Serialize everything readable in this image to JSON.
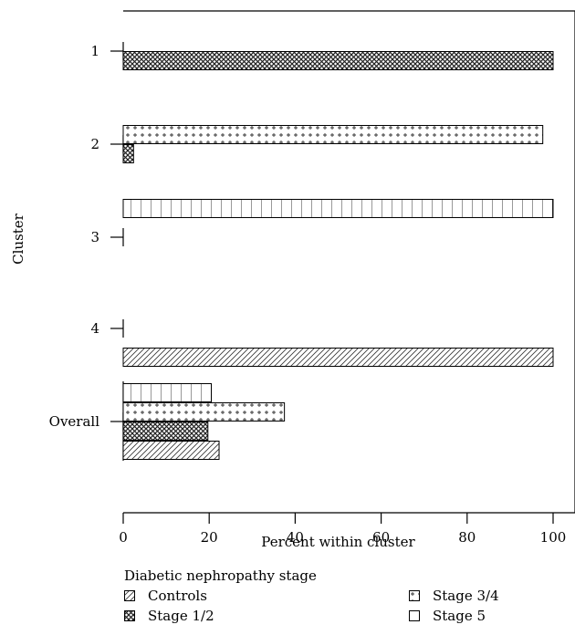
{
  "chart_data": {
    "type": "bar",
    "orientation": "horizontal",
    "ylabel": "Cluster",
    "xlabel": "Percent within cluster",
    "xlim": [
      0,
      100
    ],
    "x_ticks": [
      "0",
      "20",
      "40",
      "60",
      "80",
      "100"
    ],
    "categories": [
      "1",
      "2",
      "3",
      "4",
      "Overall"
    ],
    "series": [
      {
        "name": "Controls",
        "pattern": "diagonal-lines",
        "values": [
          0,
          0,
          0,
          100,
          22.3
        ]
      },
      {
        "name": "Stage 1/2",
        "pattern": "crosshatch",
        "values": [
          100,
          2.4,
          0,
          0,
          19.7
        ]
      },
      {
        "name": "Stage 3/4",
        "pattern": "plus-dots",
        "values": [
          0,
          97.6,
          0,
          0,
          37.5
        ]
      },
      {
        "name": "Stage 5",
        "pattern": "grid-blocks",
        "values": [
          0,
          0,
          100,
          0,
          20.5
        ]
      }
    ],
    "grid": false,
    "legend_title": "Diabetic nephropathy stage",
    "legend_position": "bottom"
  }
}
